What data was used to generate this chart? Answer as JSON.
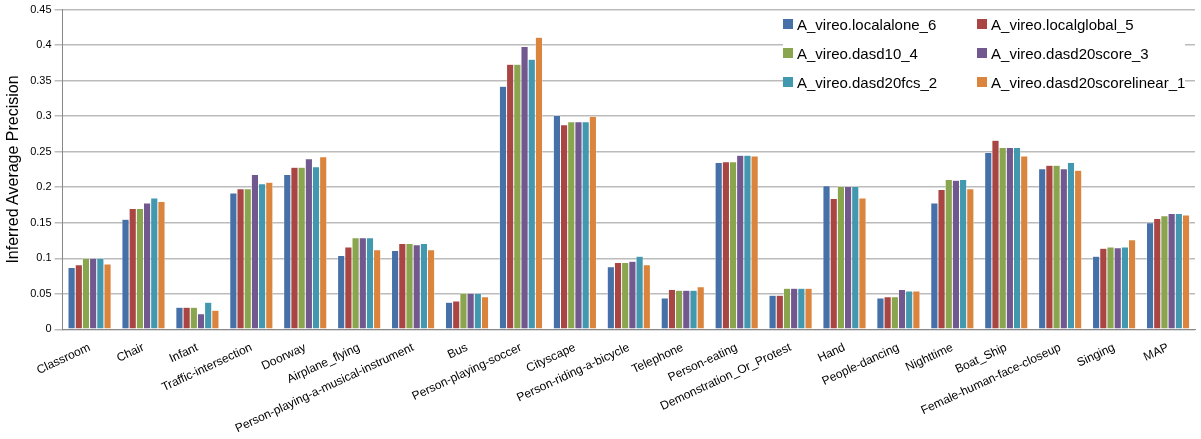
{
  "chart_data": {
    "type": "bar",
    "ylabel": "Inferred Average Precision",
    "categories": [
      "Classroom",
      "Chair",
      "Infant",
      "Traffic-intersection",
      "Doorway",
      "Airplane_flying",
      "Person-playing-a-musical-instrument",
      "Bus",
      "Person-playing-soccer",
      "Cityscape",
      "Person-riding-a-bicycle",
      "Telephone",
      "Person-eating",
      "Demonstration_Or_Protest",
      "Hand",
      "People-dancing",
      "Nighttime",
      "Boat_Ship",
      "Female-human-face-closeup",
      "Singing",
      "MAP"
    ],
    "series": [
      {
        "name": "A_vireo.localalone_6",
        "color": "#4571a8",
        "values": [
          0.087,
          0.155,
          0.031,
          0.192,
          0.218,
          0.104,
          0.111,
          0.038,
          0.342,
          0.301,
          0.088,
          0.044,
          0.235,
          0.048,
          0.202,
          0.044,
          0.178,
          0.249,
          0.226,
          0.103,
          0.15
        ]
      },
      {
        "name": "A_vireo.localglobal_5",
        "color": "#a94543",
        "values": [
          0.091,
          0.17,
          0.031,
          0.198,
          0.228,
          0.116,
          0.121,
          0.04,
          0.373,
          0.288,
          0.094,
          0.056,
          0.236,
          0.048,
          0.184,
          0.046,
          0.197,
          0.266,
          0.231,
          0.114,
          0.156
        ]
      },
      {
        "name": "A_vireo.dasd10_4",
        "color": "#89a54e",
        "values": [
          0.1,
          0.17,
          0.031,
          0.198,
          0.228,
          0.129,
          0.121,
          0.051,
          0.373,
          0.292,
          0.094,
          0.055,
          0.236,
          0.058,
          0.201,
          0.046,
          0.211,
          0.256,
          0.231,
          0.116,
          0.16
        ]
      },
      {
        "name": "A_vireo.dasd20score_3",
        "color": "#71588f",
        "values": [
          0.1,
          0.178,
          0.022,
          0.218,
          0.24,
          0.129,
          0.119,
          0.051,
          0.398,
          0.292,
          0.096,
          0.055,
          0.245,
          0.058,
          0.201,
          0.056,
          0.21,
          0.256,
          0.226,
          0.115,
          0.163
        ]
      },
      {
        "name": "A_vireo.dasd20fcs_2",
        "color": "#4198af",
        "values": [
          0.1,
          0.185,
          0.038,
          0.205,
          0.229,
          0.129,
          0.121,
          0.051,
          0.38,
          0.292,
          0.103,
          0.055,
          0.245,
          0.058,
          0.201,
          0.054,
          0.211,
          0.256,
          0.235,
          0.116,
          0.163
        ]
      },
      {
        "name": "A_vireo.dasd20scorelinear_1",
        "color": "#db843d",
        "values": [
          0.092,
          0.18,
          0.027,
          0.207,
          0.243,
          0.112,
          0.112,
          0.046,
          0.411,
          0.3,
          0.091,
          0.06,
          0.244,
          0.058,
          0.185,
          0.054,
          0.198,
          0.244,
          0.224,
          0.126,
          0.161
        ]
      }
    ],
    "ylim": [
      0,
      0.45
    ],
    "yticks": [
      0,
      0.05,
      0.1,
      0.15,
      0.2,
      0.25,
      0.3,
      0.35,
      0.4,
      0.45
    ],
    "grid": "y",
    "legend": "top right"
  }
}
